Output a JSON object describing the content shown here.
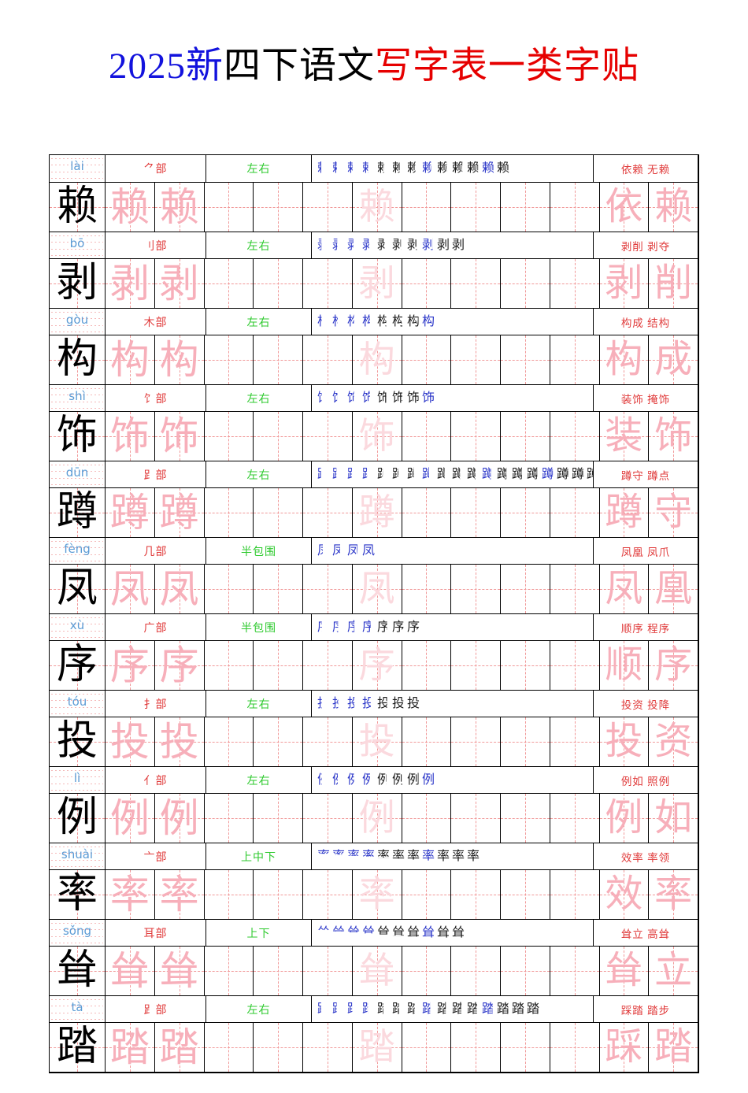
{
  "title": {
    "prefix": "2025新",
    "middle": "四下语文",
    "suffix": "写字表一类字贴"
  },
  "colors": {
    "title_blue": "#1212dd",
    "title_red": "#e60000",
    "pinyin_blue": "#5b9bd5",
    "radical_red": "#e03a3a",
    "structure_green": "#2eca2e",
    "stroke_black": "#1a1a1a",
    "stroke_blue": "#2a35c8",
    "grid_dash_pink": "#f19999",
    "trace_pink": "#f7afba",
    "faded_pink": "#fbd9de"
  },
  "practice": {
    "practice_cell_count": 10,
    "trace_count": 2,
    "faded_cell_index": 6
  },
  "rows": [
    {
      "char": "赖",
      "pinyin": "lài",
      "radical": "⺈部",
      "structure": "左右",
      "stroke_count": 13,
      "words": [
        "依赖",
        "无赖"
      ]
    },
    {
      "char": "剥",
      "pinyin": "bō",
      "radical": "刂部",
      "structure": "左右",
      "stroke_count": 10,
      "words": [
        "剥削",
        "剥夺"
      ]
    },
    {
      "char": "构",
      "pinyin": "gòu",
      "radical": "木部",
      "structure": "左右",
      "stroke_count": 8,
      "words": [
        "构成",
        "结构"
      ]
    },
    {
      "char": "饰",
      "pinyin": "shì",
      "radical": "饣部",
      "structure": "左右",
      "stroke_count": 8,
      "words": [
        "装饰",
        "掩饰"
      ]
    },
    {
      "char": "蹲",
      "pinyin": "dūn",
      "radical": "⻊部",
      "structure": "左右",
      "stroke_count": 19,
      "words": [
        "蹲守",
        "蹲点"
      ]
    },
    {
      "char": "凤",
      "pinyin": "fèng",
      "radical": "几部",
      "structure": "半包围",
      "stroke_count": 4,
      "words": [
        "凤凰",
        "凤爪"
      ]
    },
    {
      "char": "序",
      "pinyin": "xù",
      "radical": "广部",
      "structure": "半包围",
      "stroke_count": 7,
      "words": [
        "顺序",
        "程序"
      ]
    },
    {
      "char": "投",
      "pinyin": "tóu",
      "radical": "扌部",
      "structure": "左右",
      "stroke_count": 7,
      "words": [
        "投资",
        "投降"
      ]
    },
    {
      "char": "例",
      "pinyin": "lì",
      "radical": "亻部",
      "structure": "左右",
      "stroke_count": 8,
      "words": [
        "例如",
        "照例"
      ]
    },
    {
      "char": "率",
      "pinyin": "shuài",
      "radical": "亠部",
      "structure": "上中下",
      "stroke_count": 11,
      "words": [
        "效率",
        "率领"
      ]
    },
    {
      "char": "耸",
      "pinyin": "sǒng",
      "radical": "耳部",
      "structure": "上下",
      "stroke_count": 10,
      "words": [
        "耸立",
        "高耸"
      ]
    },
    {
      "char": "踏",
      "pinyin": "tà",
      "radical": "⻊部",
      "structure": "左右",
      "stroke_count": 15,
      "words": [
        "踩踏",
        "踏步"
      ]
    }
  ]
}
